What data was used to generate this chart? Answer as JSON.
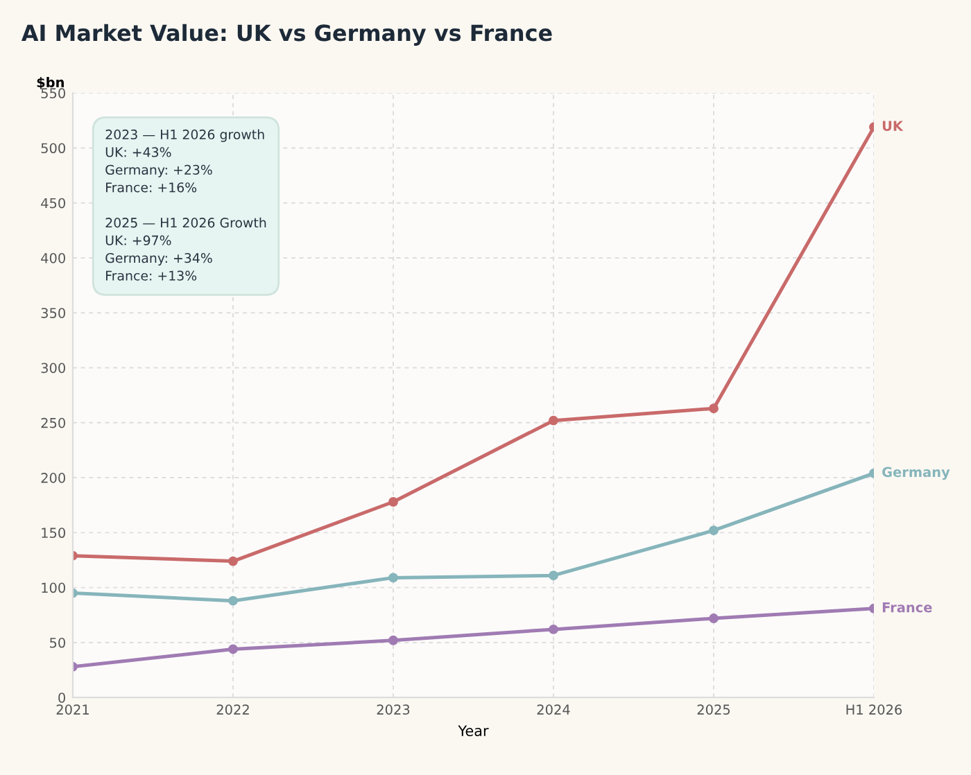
{
  "chart_data": {
    "type": "line",
    "title": "AI Market Value: UK vs Germany vs France",
    "xlabel": "Year",
    "ylabel": "$bn",
    "categories": [
      "2021",
      "2022",
      "2023",
      "2024",
      "2025",
      "H1 2026"
    ],
    "series": [
      {
        "name": "UK",
        "color": "#c96a6a",
        "values": [
          129,
          124,
          178,
          252,
          263,
          519
        ]
      },
      {
        "name": "Germany",
        "color": "#86b5bb",
        "values": [
          95,
          88,
          109,
          111,
          152,
          204
        ]
      },
      {
        "name": "France",
        "color": "#a07bb3",
        "values": [
          28,
          44,
          52,
          62,
          72,
          81
        ]
      }
    ],
    "ylim": [
      0,
      550
    ],
    "yticks": [
      0,
      50,
      100,
      150,
      200,
      250,
      300,
      350,
      400,
      450,
      500,
      550
    ],
    "annotations": [
      "2023 — H1 2026 growth\nUK: +43%\nGermany: +23%\nFrance: +16%",
      "2025 — H1 2026 Growth\nUK: +97%\nGermany: +34%\nFrance: +13%"
    ],
    "grid": true,
    "marker": "circle",
    "line_style": "solid",
    "legend": false
  }
}
